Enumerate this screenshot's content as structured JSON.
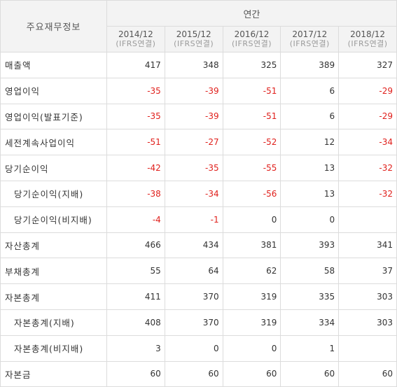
{
  "header": {
    "corner_label": "주요재무정보",
    "group_label": "연간",
    "periods": [
      {
        "year": "2014/12",
        "basis": "(IFRS연결)"
      },
      {
        "year": "2015/12",
        "basis": "(IFRS연결)"
      },
      {
        "year": "2016/12",
        "basis": "(IFRS연결)"
      },
      {
        "year": "2017/12",
        "basis": "(IFRS연결)"
      },
      {
        "year": "2018/12",
        "basis": "(IFRS연결)"
      }
    ]
  },
  "rows": [
    {
      "label": "매출액",
      "sub": false,
      "values": [
        "417",
        "348",
        "325",
        "389",
        "327"
      ]
    },
    {
      "label": "영업이익",
      "sub": false,
      "values": [
        "-35",
        "-39",
        "-51",
        "6",
        "-29"
      ]
    },
    {
      "label": "영업이익(발표기준)",
      "sub": false,
      "values": [
        "-35",
        "-39",
        "-51",
        "6",
        "-29"
      ]
    },
    {
      "label": "세전계속사업이익",
      "sub": false,
      "values": [
        "-51",
        "-27",
        "-52",
        "12",
        "-34"
      ]
    },
    {
      "label": "당기순이익",
      "sub": false,
      "values": [
        "-42",
        "-35",
        "-55",
        "13",
        "-32"
      ]
    },
    {
      "label": "당기순이익(지배)",
      "sub": true,
      "values": [
        "-38",
        "-34",
        "-56",
        "13",
        "-32"
      ]
    },
    {
      "label": "당기순이익(비지배)",
      "sub": true,
      "values": [
        "-4",
        "-1",
        "0",
        "0",
        ""
      ]
    },
    {
      "label": "자산총계",
      "sub": false,
      "values": [
        "466",
        "434",
        "381",
        "393",
        "341"
      ]
    },
    {
      "label": "부채총계",
      "sub": false,
      "values": [
        "55",
        "64",
        "62",
        "58",
        "37"
      ]
    },
    {
      "label": "자본총계",
      "sub": false,
      "values": [
        "411",
        "370",
        "319",
        "335",
        "303"
      ]
    },
    {
      "label": "자본총계(지배)",
      "sub": true,
      "values": [
        "408",
        "370",
        "319",
        "334",
        "303"
      ]
    },
    {
      "label": "자본총계(비지배)",
      "sub": true,
      "values": [
        "3",
        "0",
        "0",
        "1",
        ""
      ]
    },
    {
      "label": "자본금",
      "sub": false,
      "values": [
        "60",
        "60",
        "60",
        "60",
        "60"
      ]
    }
  ],
  "colors": {
    "negative": "#e0201c",
    "header_bg": "#f3f3f3",
    "border": "#dcdcdc"
  }
}
